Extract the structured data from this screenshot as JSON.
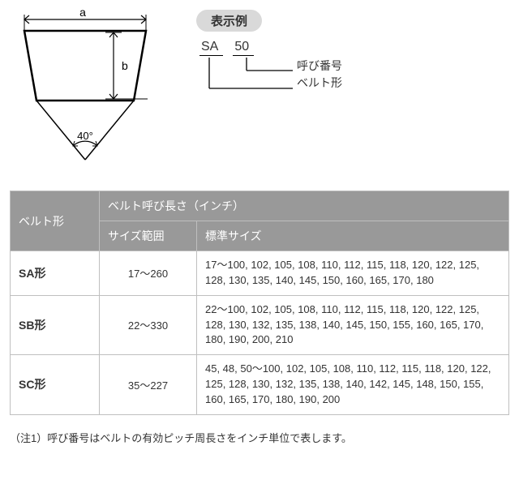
{
  "diagram": {
    "label_a": "a",
    "label_b": "b",
    "angle": "40°",
    "stroke": "#000000",
    "stroke_width": 2
  },
  "example": {
    "badge": "表示例",
    "part1": "SA",
    "part2": "50",
    "label_call_no": "呼び番号",
    "label_belt_type": "ベルト形"
  },
  "table": {
    "header_belt": "ベルト形",
    "header_length": "ベルト呼び長さ（インチ）",
    "header_range": "サイズ範囲",
    "header_std": "標準サイズ",
    "col_widths": {
      "katachi": 110,
      "range": 120
    },
    "header_bg": "#999999",
    "header_fg": "#ffffff",
    "border_color": "#bfbfbf",
    "rows": [
      {
        "name": "SA形",
        "range": "17～260",
        "sizes": "17～100, 102, 105, 108, 110, 112, 115, 118, 120, 122, 125, 128, 130, 135, 140, 145, 150, 160, 165, 170, 180"
      },
      {
        "name": "SB形",
        "range": "22～330",
        "sizes": "22～100, 102, 105, 108, 110, 112, 115, 118, 120, 122, 125, 128, 130, 132, 135, 138, 140, 145, 150, 155, 160, 165, 170, 180, 190, 200, 210"
      },
      {
        "name": "SC形",
        "range": "35～227",
        "sizes": "45, 48, 50～100, 102, 105, 108, 110, 112, 115, 118, 120, 122, 125, 128, 130, 132, 135, 138, 140, 142, 145, 148, 150, 155, 160, 165, 170, 180, 190, 200"
      }
    ]
  },
  "note": "（注1）呼び番号はベルトの有効ピッチ周長さをインチ単位で表します。"
}
